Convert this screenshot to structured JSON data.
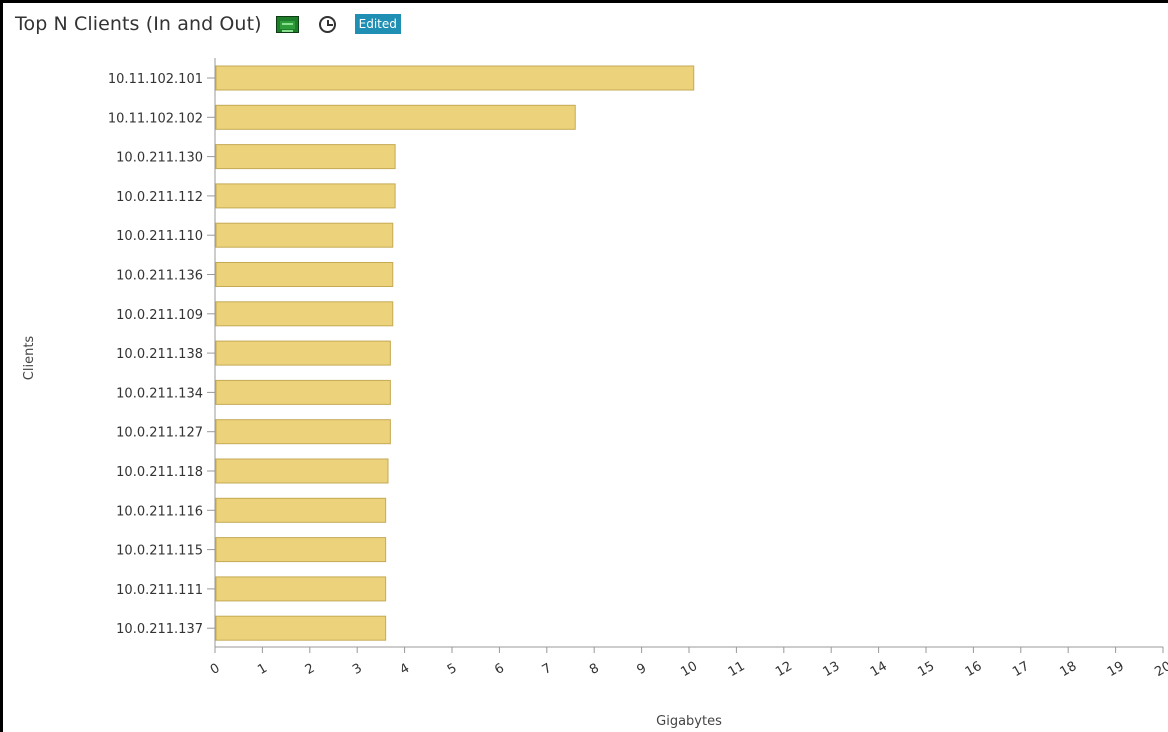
{
  "header": {
    "title": "Top N Clients (In and Out)",
    "chart_icon": "chart-icon",
    "clock_icon": "clock-icon",
    "badge": "Edited"
  },
  "colors": {
    "bar_fill": "#ecd37b",
    "bar_stroke": "#c4aa55",
    "badge_bg": "#1f8fb3",
    "axis": "#999999"
  },
  "chart_data": {
    "type": "bar",
    "orientation": "horizontal",
    "title": "Top N Clients (In and Out)",
    "xlabel": "Gigabytes",
    "ylabel": "Clients",
    "xlim": [
      0,
      20
    ],
    "x_ticks": [
      "0",
      "1",
      "2",
      "3",
      "4",
      "5",
      "6",
      "7",
      "8",
      "9",
      "10",
      "11",
      "12",
      "13",
      "14",
      "15",
      "16",
      "17",
      "18",
      "19",
      "20"
    ],
    "grid": false,
    "legend": "none",
    "categories": [
      "10.11.102.101",
      "10.11.102.102",
      "10.0.211.130",
      "10.0.211.112",
      "10.0.211.110",
      "10.0.211.136",
      "10.0.211.109",
      "10.0.211.138",
      "10.0.211.134",
      "10.0.211.127",
      "10.0.211.118",
      "10.0.211.116",
      "10.0.211.115",
      "10.0.211.111",
      "10.0.211.137"
    ],
    "values": [
      10.1,
      7.6,
      3.8,
      3.8,
      3.75,
      3.75,
      3.75,
      3.7,
      3.7,
      3.7,
      3.65,
      3.6,
      3.6,
      3.6,
      3.6
    ]
  }
}
